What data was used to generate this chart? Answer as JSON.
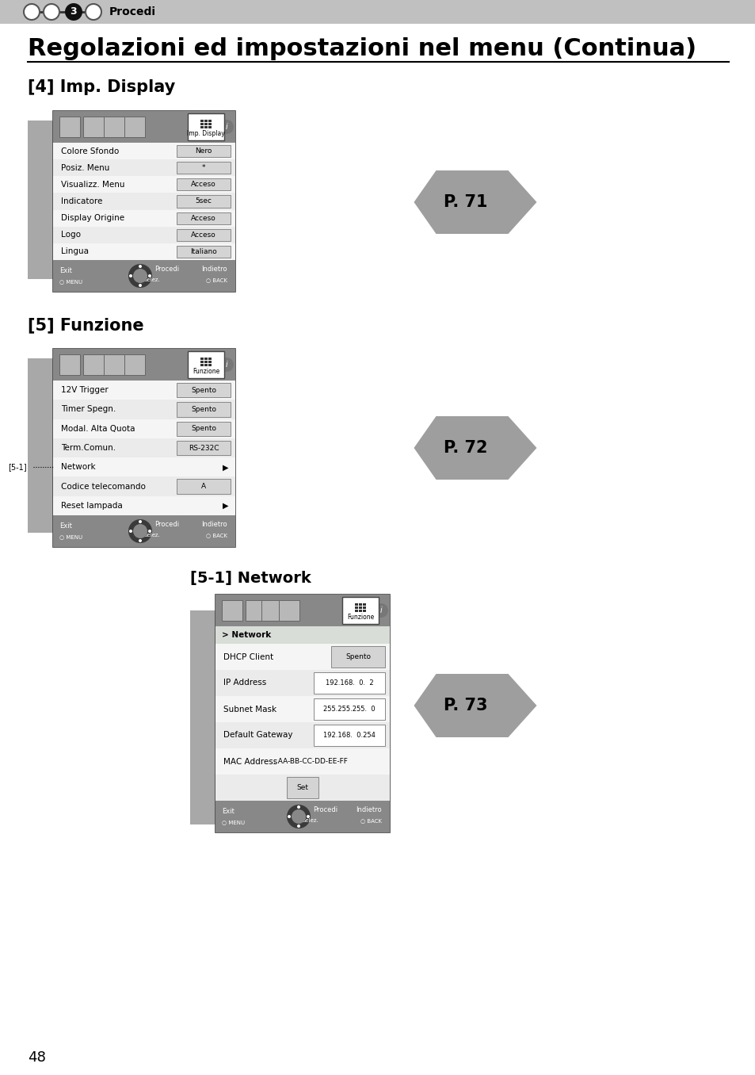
{
  "bg_color": "#ffffff",
  "header_bg": "#c0c0c0",
  "header_text": "Procedi",
  "title": "Regolazioni ed impostazioni nel menu (Continua)",
  "section1_title": "[4] Imp. Display",
  "section2_title": "[5] Funzione",
  "section3_title": "[5-1] Network",
  "page_number": "48",
  "arrow1_text": "P. 71",
  "arrow2_text": "P. 72",
  "arrow3_text": "P. 73",
  "menu1_items": [
    [
      "Colore Sfondo",
      "Nero"
    ],
    [
      "Posiz. Menu",
      "*"
    ],
    [
      "Visualizz. Menu",
      "Acceso"
    ],
    [
      "Indicatore",
      "5sec"
    ],
    [
      "Display Origine",
      "Acceso"
    ],
    [
      "Logo",
      "Acceso"
    ],
    [
      "Lingua",
      "Italiano"
    ]
  ],
  "menu2_items": [
    [
      "12V Trigger",
      "Spento"
    ],
    [
      "Timer Spegn.",
      "Spento"
    ],
    [
      "Modal. Alta Quota",
      "Spento"
    ],
    [
      "Term.Comun.",
      "RS-232C"
    ],
    [
      "Network",
      "sub"
    ],
    [
      "Codice telecomando",
      "A"
    ],
    [
      "Reset lampada",
      "sub"
    ]
  ],
  "menu3_items": [
    [
      "DHCP Client",
      "Spento"
    ],
    [
      "IP Address",
      "192.168.  0.  2"
    ],
    [
      "Subnet Mask",
      "255.255.255.  0"
    ],
    [
      "Default Gateway",
      "192.168.  0.254"
    ],
    [
      "MAC Address",
      "AA-BB-CC-DD-EE-FF"
    ],
    [
      "",
      "Set"
    ]
  ]
}
